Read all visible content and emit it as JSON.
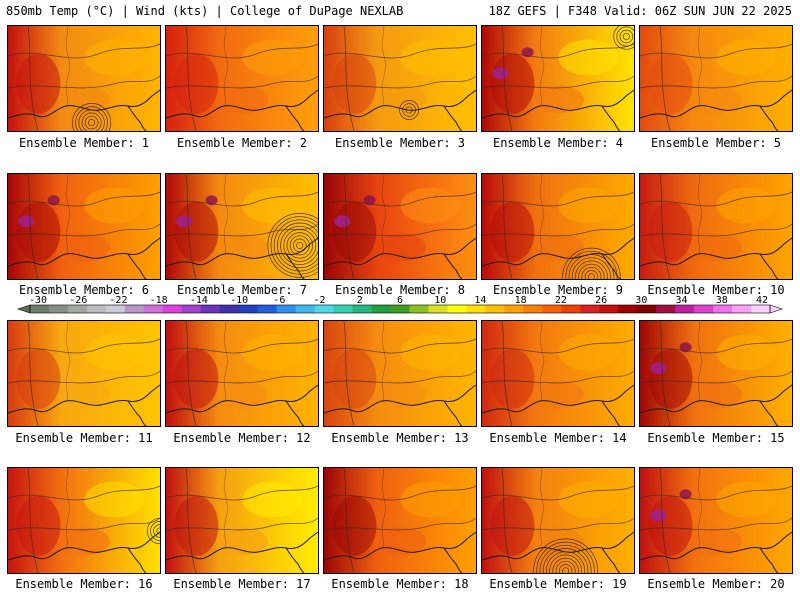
{
  "header": {
    "left": "850mb Temp (°C) | Wind (kts) | College of DuPage NEXLAB",
    "right": "18Z GEFS | F348 Valid: 06Z SUN JUN 22 2025"
  },
  "colorbar": {
    "ticks": [
      "-30",
      "-26",
      "-22",
      "-18",
      "-14",
      "-10",
      "-6",
      "-2",
      "2",
      "6",
      "10",
      "14",
      "18",
      "22",
      "26",
      "30",
      "34",
      "38",
      "42"
    ],
    "colors": [
      "#6b7f6b",
      "#879087",
      "#a0a8a0",
      "#b8bcc0",
      "#c9c9d8",
      "#b896c8",
      "#d070d8",
      "#e040e0",
      "#a040d0",
      "#7030c0",
      "#4030b0",
      "#2040c0",
      "#2060e0",
      "#3090f0",
      "#40b8f0",
      "#50d8e8",
      "#30d0b0",
      "#20b880",
      "#20a040",
      "#40a020",
      "#90c020",
      "#d8e020",
      "#ffff00",
      "#ffe000",
      "#ffc000",
      "#ffa000",
      "#ff8000",
      "#ff6000",
      "#f04000",
      "#e02020",
      "#c81010",
      "#a00000",
      "#800000",
      "#a01040",
      "#c020a0",
      "#e040d0",
      "#f070f0",
      "#f8a0f8",
      "#ffd0ff"
    ]
  },
  "panels": [
    {
      "label": "Ensemble Member: 1",
      "base": "#f38a12",
      "tint": "#ffb400",
      "hot": "#c51010",
      "purple": false,
      "low": [
        0.55,
        0.92,
        6
      ]
    },
    {
      "label": "Ensemble Member: 2",
      "base": "#f26a10",
      "tint": "#ff9f0a",
      "hot": "#d62010",
      "purple": false,
      "low": null
    },
    {
      "label": "Ensemble Member: 3",
      "base": "#f59a10",
      "tint": "#ffc000",
      "hot": "#d84010",
      "purple": false,
      "low": [
        0.56,
        0.8,
        3
      ]
    },
    {
      "label": "Ensemble Member: 4",
      "base": "#f37a10",
      "tint": "#ffe400",
      "hot": "#b00808",
      "purple": true,
      "low": [
        0.95,
        0.1,
        4
      ]
    },
    {
      "label": "Ensemble Member: 5",
      "base": "#f58810",
      "tint": "#ffb000",
      "hot": "#e44a10",
      "purple": false,
      "low": null
    },
    {
      "label": "Ensemble Member: 6",
      "base": "#f06010",
      "tint": "#ffa000",
      "hot": "#a80606",
      "purple": true,
      "low": null
    },
    {
      "label": "Ensemble Member: 7",
      "base": "#f48a10",
      "tint": "#ffc000",
      "hot": "#b00808",
      "purple": true,
      "low": [
        0.88,
        0.68,
        10
      ]
    },
    {
      "label": "Ensemble Member: 8",
      "base": "#e84410",
      "tint": "#ff9010",
      "hot": "#9a0505",
      "purple": true,
      "low": null
    },
    {
      "label": "Ensemble Member: 9",
      "base": "#f07010",
      "tint": "#ffaa00",
      "hot": "#b80a0a",
      "purple": false,
      "low": [
        0.72,
        0.98,
        9
      ]
    },
    {
      "label": "Ensemble Member: 10",
      "base": "#f06a10",
      "tint": "#ffa400",
      "hot": "#c81a10",
      "purple": false,
      "low": null
    },
    {
      "label": "Ensemble Member: 11",
      "base": "#f8a810",
      "tint": "#ffc400",
      "hot": "#d83a10",
      "purple": false,
      "low": null
    },
    {
      "label": "Ensemble Member: 12",
      "base": "#f58c10",
      "tint": "#ffb400",
      "hot": "#c01010",
      "purple": false,
      "low": null
    },
    {
      "label": "Ensemble Member: 13",
      "base": "#f58c10",
      "tint": "#ffb600",
      "hot": "#d84410",
      "purple": false,
      "low": null
    },
    {
      "label": "Ensemble Member: 14",
      "base": "#f27810",
      "tint": "#ffac00",
      "hot": "#d02810",
      "purple": false,
      "low": null
    },
    {
      "label": "Ensemble Member: 15",
      "base": "#f07010",
      "tint": "#ffb000",
      "hot": "#a00606",
      "purple": true,
      "low": null
    },
    {
      "label": "Ensemble Member: 16",
      "base": "#f27010",
      "tint": "#ffe000",
      "hot": "#c81410",
      "purple": false,
      "low": [
        1.0,
        0.6,
        4
      ]
    },
    {
      "label": "Ensemble Member: 17",
      "base": "#f6a010",
      "tint": "#ffec00",
      "hot": "#c01010",
      "purple": false,
      "low": null
    },
    {
      "label": "Ensemble Member: 18",
      "base": "#f06010",
      "tint": "#ffa000",
      "hot": "#9c0606",
      "purple": false,
      "low": null
    },
    {
      "label": "Ensemble Member: 19",
      "base": "#f38010",
      "tint": "#ffb000",
      "hot": "#c01010",
      "purple": false,
      "low": [
        0.55,
        0.98,
        10
      ]
    },
    {
      "label": "Ensemble Member: 20",
      "base": "#f27010",
      "tint": "#ffa800",
      "hot": "#c01010",
      "purple": true,
      "low": null
    }
  ]
}
